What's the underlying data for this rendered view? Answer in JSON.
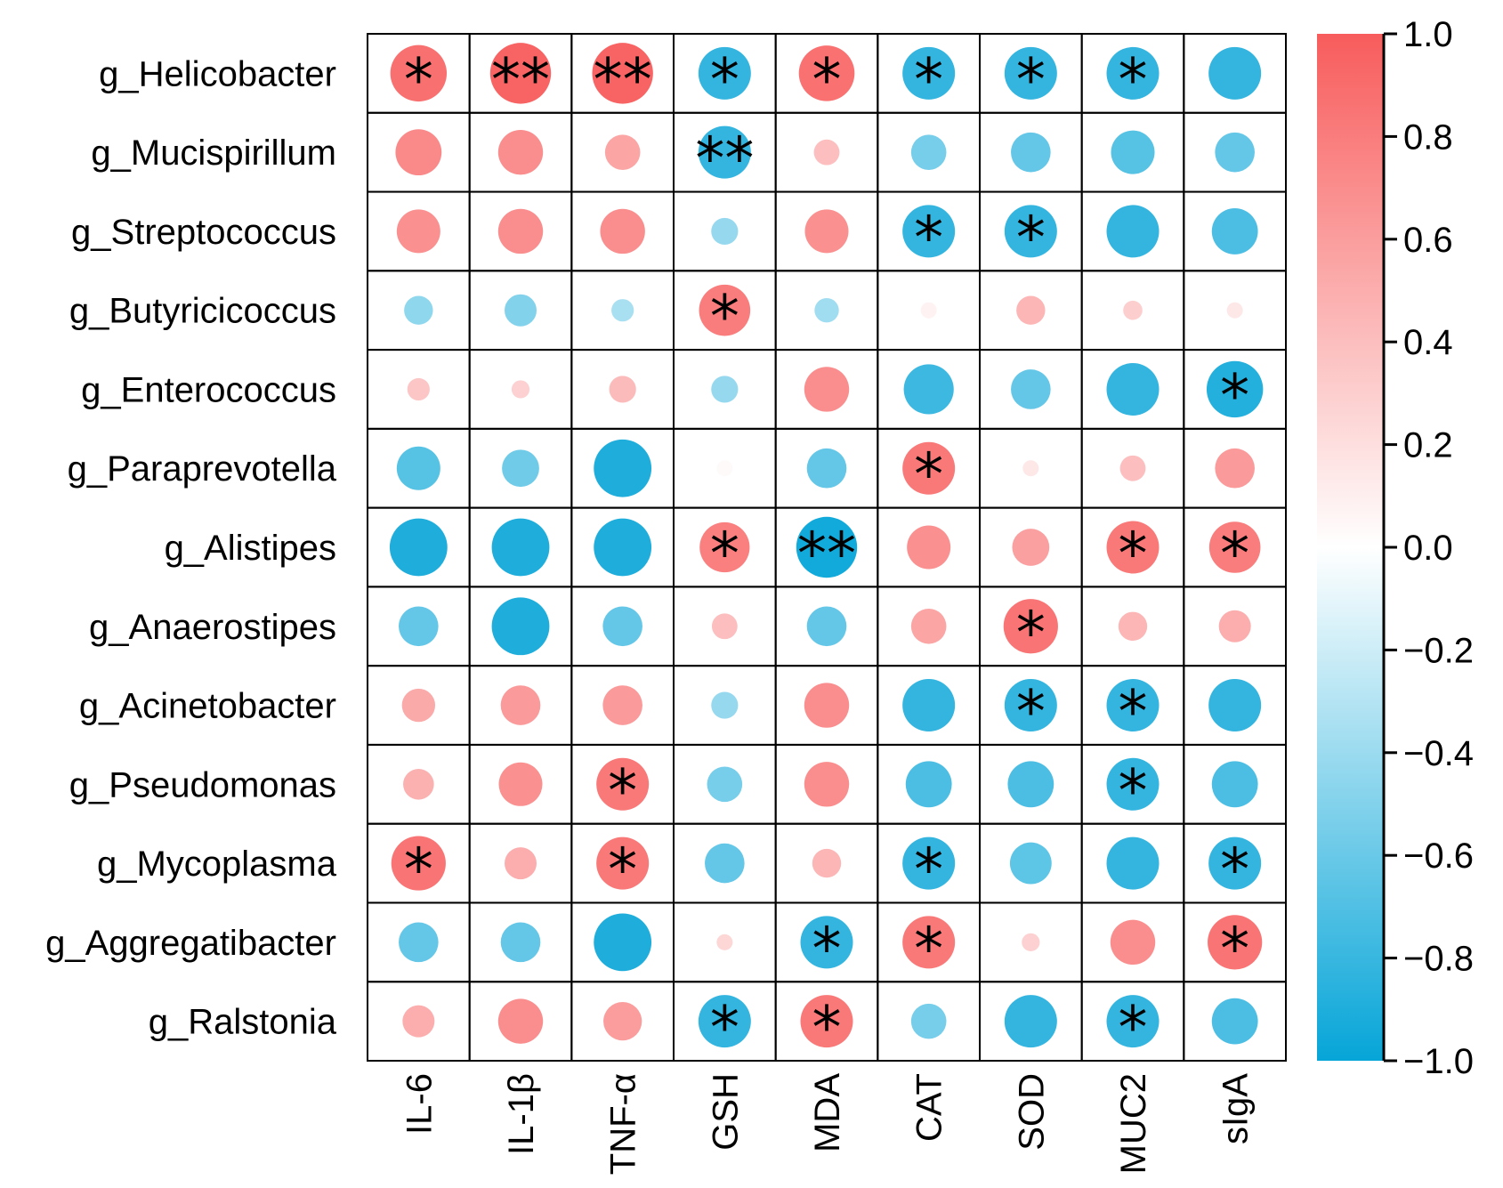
{
  "chart_data": {
    "type": "heatmap",
    "subtype": "correlation-circle",
    "rows": [
      "g_Helicobacter",
      "g_Mucispirillum",
      "g_Streptococcus",
      "g_Butyricicoccus",
      "g_Enterococcus",
      "g_Paraprevotella",
      "g_Alistipes",
      "g_Anaerostipes",
      "g_Acinetobacter",
      "g_Pseudomonas",
      "g_Mycoplasma",
      "g_Aggregatibacter",
      "g_Ralstonia"
    ],
    "columns": [
      "IL-6",
      "IL-1β",
      "TNF-α",
      "GSH",
      "MDA",
      "CAT",
      "SOD",
      "MUC2",
      "sIgA"
    ],
    "values": [
      [
        0.88,
        0.95,
        0.95,
        -0.82,
        0.87,
        -0.82,
        -0.82,
        -0.82,
        -0.82
      ],
      [
        0.72,
        0.7,
        0.55,
        -0.82,
        0.4,
        -0.55,
        -0.62,
        -0.68,
        -0.62
      ],
      [
        0.68,
        0.7,
        0.7,
        -0.42,
        0.68,
        -0.82,
        -0.82,
        -0.82,
        -0.72
      ],
      [
        -0.45,
        -0.5,
        -0.35,
        0.8,
        -0.38,
        0.08,
        0.45,
        0.3,
        0.15
      ],
      [
        0.35,
        0.28,
        0.42,
        -0.42,
        0.7,
        -0.78,
        -0.62,
        -0.82,
        -0.88
      ],
      [
        -0.68,
        -0.58,
        -0.9,
        0.03,
        -0.62,
        0.82,
        0.15,
        0.4,
        0.62
      ],
      [
        -0.9,
        -0.9,
        -0.9,
        0.78,
        -0.95,
        0.68,
        0.58,
        0.82,
        0.8
      ],
      [
        -0.62,
        -0.9,
        -0.62,
        0.4,
        -0.62,
        0.55,
        0.85,
        0.45,
        0.5
      ],
      [
        0.52,
        0.62,
        0.62,
        -0.42,
        0.7,
        -0.82,
        -0.82,
        -0.82,
        -0.82
      ],
      [
        0.48,
        0.68,
        0.82,
        -0.55,
        0.7,
        -0.72,
        -0.72,
        -0.82,
        -0.72
      ],
      [
        0.85,
        0.5,
        0.82,
        -0.62,
        0.45,
        -0.82,
        -0.65,
        -0.82,
        -0.82
      ],
      [
        -0.62,
        -0.62,
        -0.9,
        0.25,
        -0.82,
        0.82,
        0.28,
        0.7,
        0.85
      ],
      [
        0.5,
        0.7,
        0.6,
        -0.82,
        0.82,
        -0.55,
        -0.82,
        -0.82,
        -0.72
      ]
    ],
    "significance": [
      [
        "*",
        "**",
        "**",
        "*",
        "*",
        "*",
        "*",
        "*",
        ""
      ],
      [
        "",
        "",
        "",
        "**",
        "",
        "",
        "",
        "",
        ""
      ],
      [
        "",
        "",
        "",
        "",
        "",
        "*",
        "*",
        "",
        ""
      ],
      [
        "",
        "",
        "",
        "*",
        "",
        "",
        "",
        "",
        ""
      ],
      [
        "",
        "",
        "",
        "",
        "",
        "",
        "",
        "",
        "*"
      ],
      [
        "",
        "",
        "",
        "",
        "",
        "*",
        "",
        "",
        ""
      ],
      [
        "",
        "",
        "",
        "*",
        "**",
        "",
        "",
        "*",
        "*"
      ],
      [
        "",
        "",
        "",
        "",
        "",
        "",
        "*",
        "",
        ""
      ],
      [
        "",
        "",
        "",
        "",
        "",
        "",
        "*",
        "*",
        ""
      ],
      [
        "",
        "",
        "*",
        "",
        "",
        "",
        "",
        "*",
        ""
      ],
      [
        "*",
        "",
        "*",
        "",
        "",
        "*",
        "",
        "",
        "*"
      ],
      [
        "",
        "",
        "",
        "",
        "*",
        "*",
        "",
        "",
        "*"
      ],
      [
        "",
        "",
        "",
        "*",
        "*",
        "",
        "",
        "*",
        ""
      ]
    ],
    "colorbar": {
      "range": [
        -1.0,
        1.0
      ],
      "ticks": [
        "1.0",
        "0.8",
        "0.6",
        "0.4",
        "0.2",
        "0.0",
        "−0.2",
        "−0.4",
        "−0.6",
        "−0.8",
        "−1.0"
      ],
      "tick_values": [
        1.0,
        0.8,
        0.6,
        0.4,
        0.2,
        0.0,
        -0.2,
        -0.4,
        -0.6,
        -0.8,
        -1.0
      ]
    },
    "colors": {
      "positive": "#F85C5C",
      "zero": "#FFFFFF",
      "negative": "#06A5D8"
    }
  }
}
